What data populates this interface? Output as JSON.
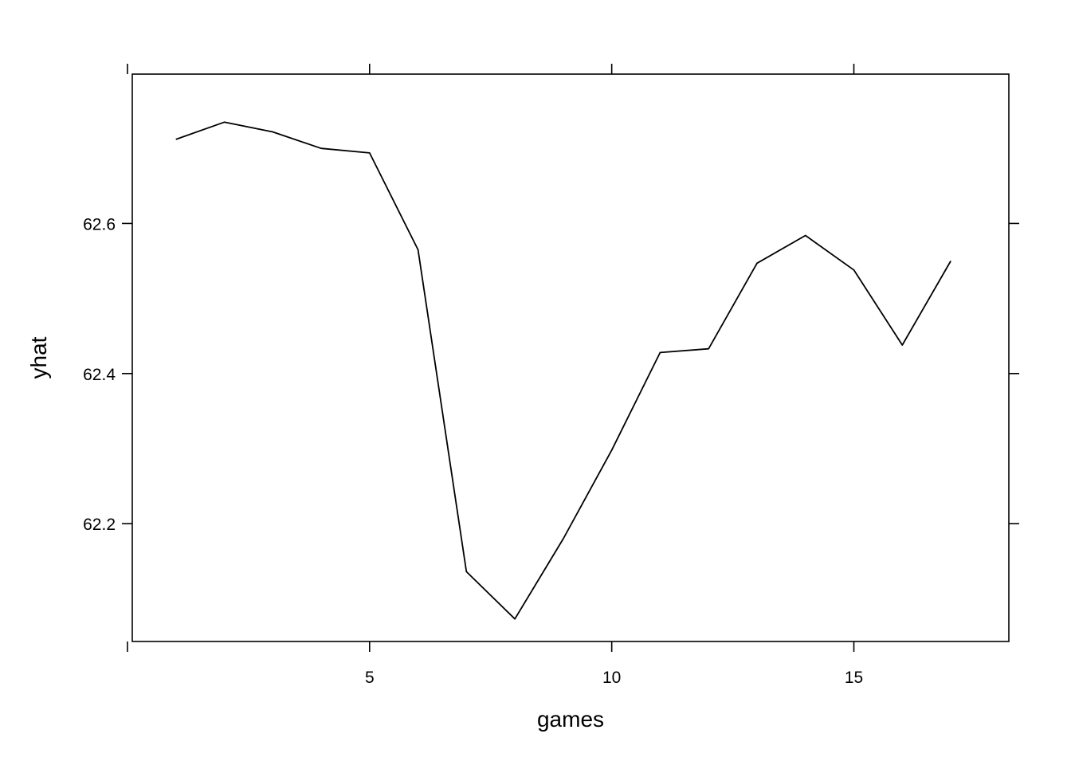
{
  "chart_data": {
    "type": "line",
    "title": "",
    "xlabel": "games",
    "ylabel": "yhat",
    "x": [
      1,
      2,
      3,
      4,
      5,
      6,
      7,
      8,
      9,
      10,
      11,
      12,
      13,
      14,
      15,
      16,
      17
    ],
    "series": [
      {
        "values": [
          62.712,
          62.735,
          62.722,
          62.7,
          62.694,
          62.565,
          62.136,
          62.073,
          62.18,
          62.298,
          62.428,
          62.433,
          62.547,
          62.584,
          62.538,
          62.438,
          62.55
        ]
      }
    ],
    "xticks": [
      5,
      10,
      15
    ],
    "xtick_labels": [
      "5",
      "10",
      "15"
    ],
    "yticks": [
      62.2,
      62.4,
      62.6
    ],
    "ytick_labels": [
      "62.2",
      "62.4",
      "62.6"
    ],
    "xlim": [
      0.1,
      18.2
    ],
    "ylim": [
      62.043,
      62.799
    ],
    "grid": false,
    "line_color": "#000000",
    "axis_color": "#000000"
  }
}
